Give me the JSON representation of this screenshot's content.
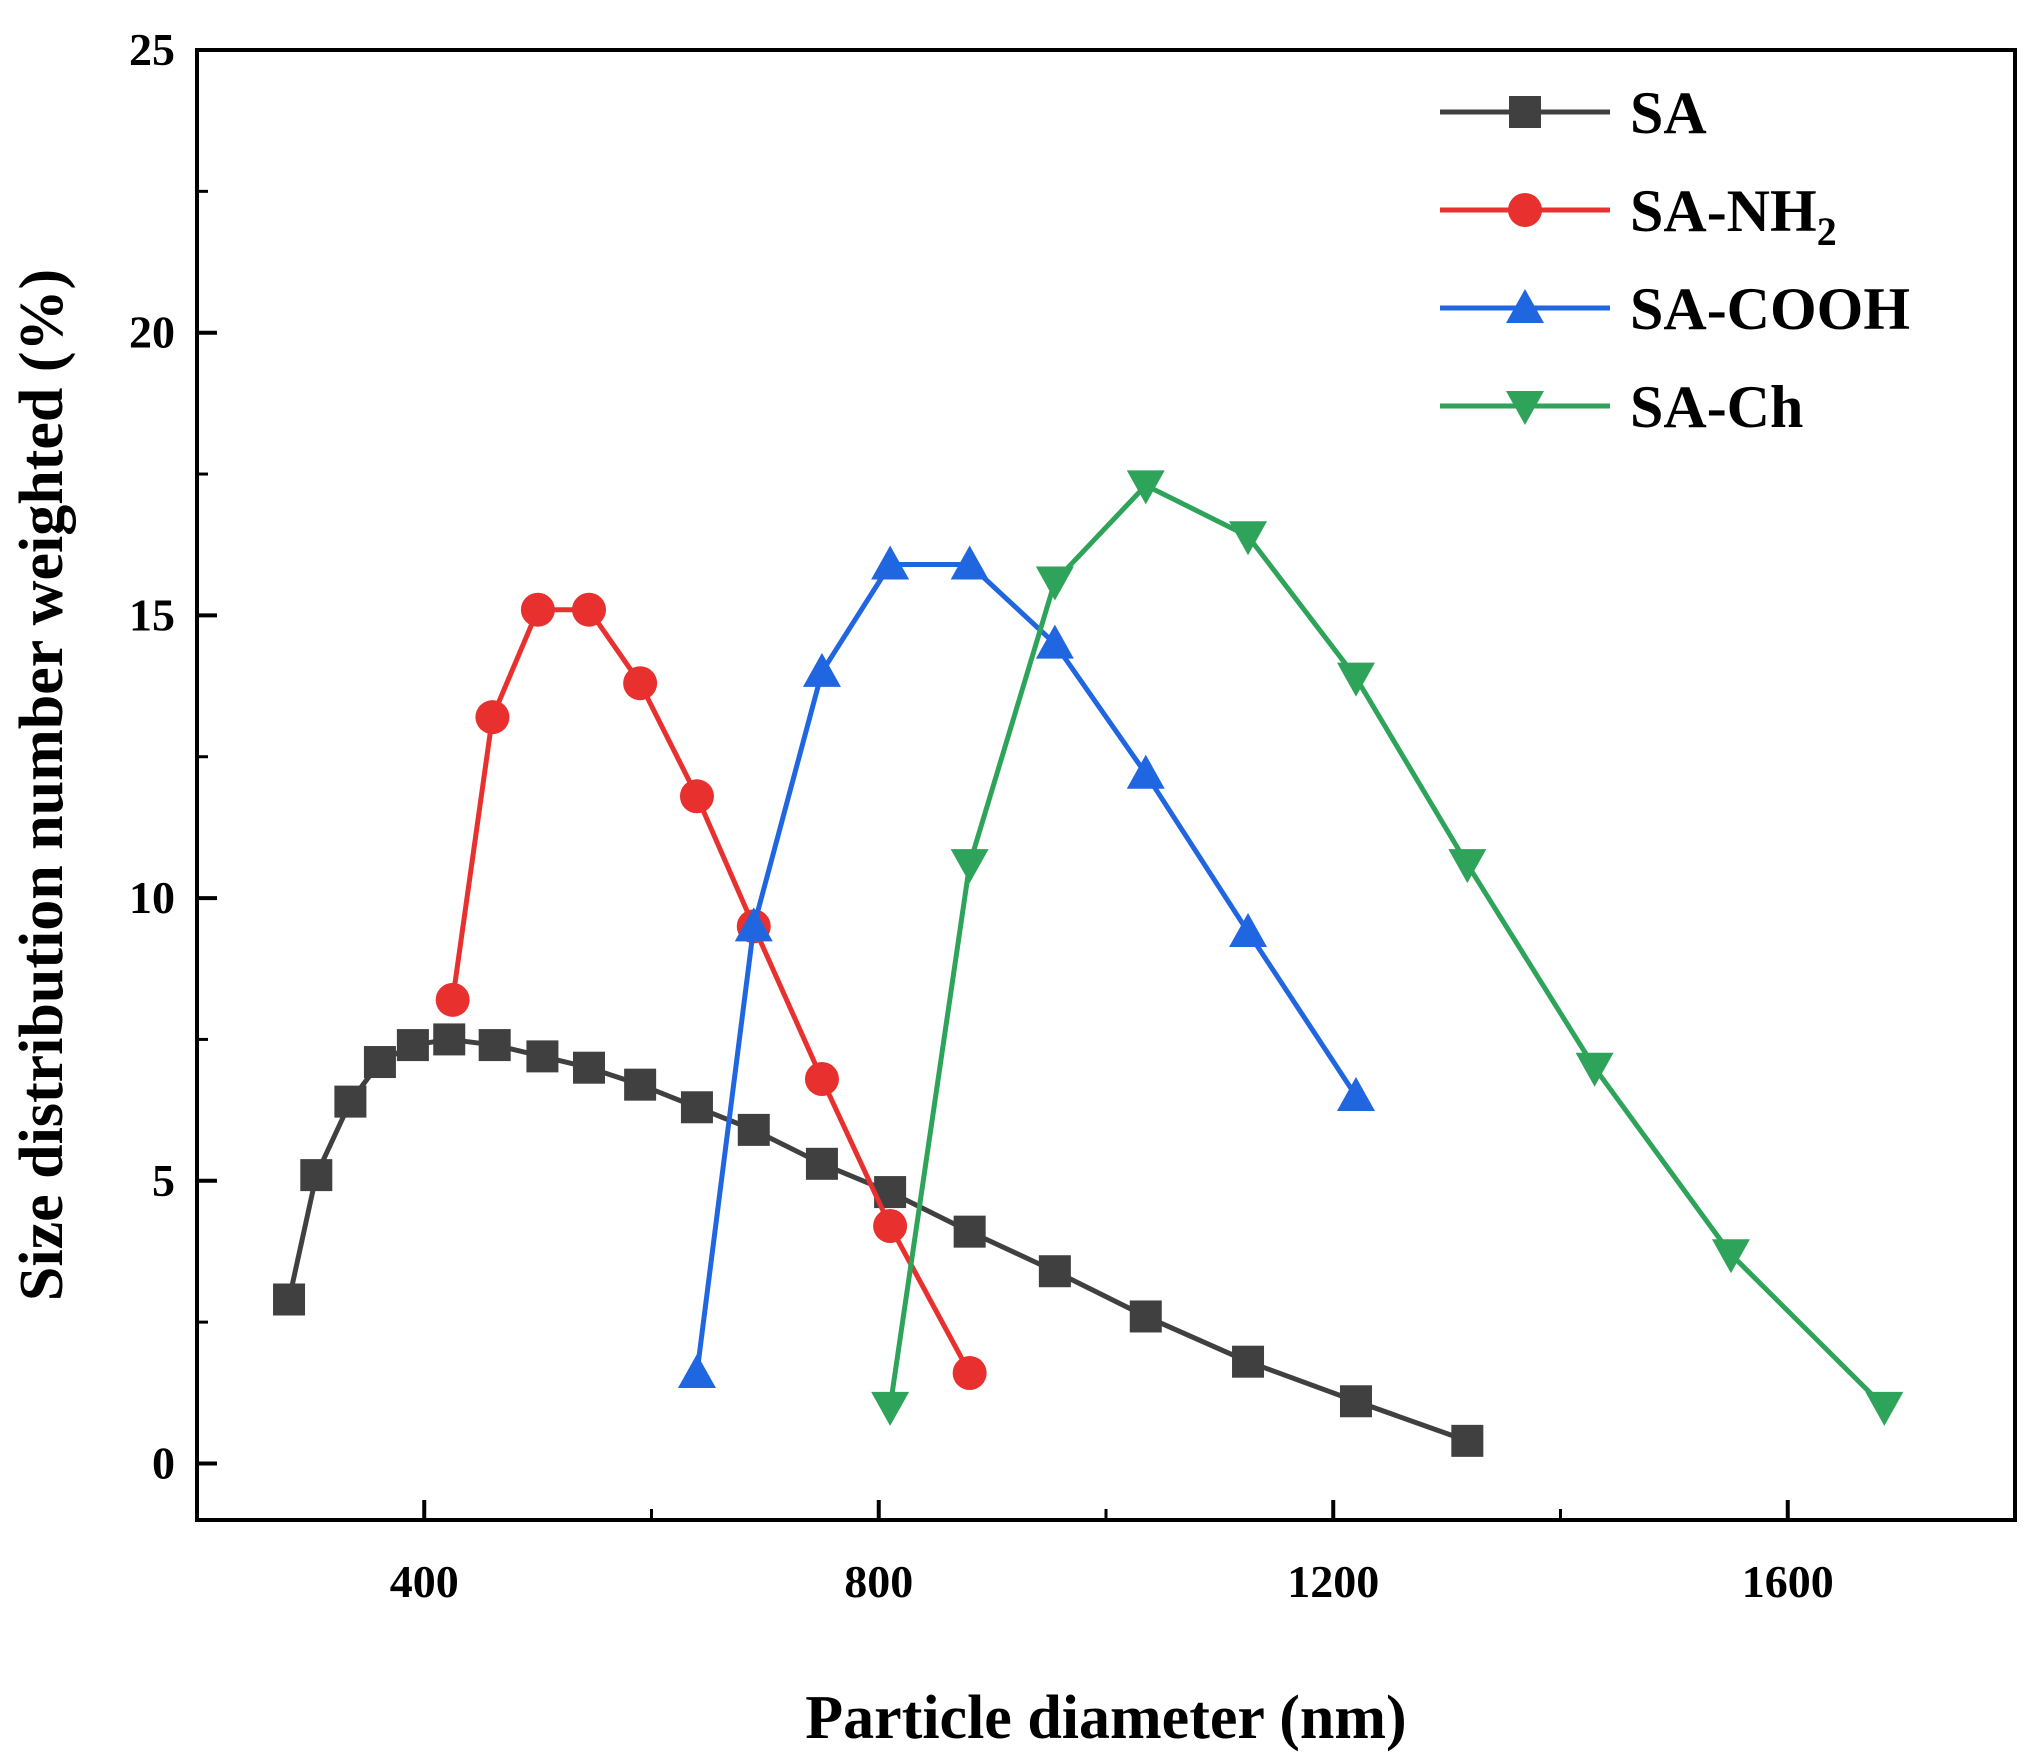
{
  "chart_data": {
    "type": "line",
    "xlabel": "Particle diameter (nm)",
    "ylabel": "Size distribution number weighted (%)",
    "xlim": [
      200,
      1800
    ],
    "ylim": [
      -1,
      25
    ],
    "xticks": [
      400,
      800,
      1200,
      1600
    ],
    "yticks": [
      0,
      5,
      10,
      15,
      20,
      25
    ],
    "grid": false,
    "legend_position": "top-right",
    "series": [
      {
        "name": "SA",
        "legend_main": "SA",
        "legend_sub": "",
        "color": "#404040",
        "marker": "square",
        "x": [
          281,
          305,
          335,
          361,
          390,
          422,
          462,
          504,
          545,
          590,
          640,
          690,
          750,
          810,
          880,
          955,
          1035,
          1125,
          1220,
          1318
        ],
        "y": [
          2.9,
          5.1,
          6.4,
          7.1,
          7.4,
          7.5,
          7.4,
          7.2,
          7.0,
          6.7,
          6.3,
          5.9,
          5.3,
          4.8,
          4.1,
          3.4,
          2.6,
          1.8,
          1.1,
          0.4
        ]
      },
      {
        "name": "SA-NH2",
        "legend_main": "SA-NH",
        "legend_sub": "2",
        "color": "#e8302f",
        "marker": "circle",
        "x": [
          425,
          460,
          500,
          545,
          590,
          640,
          690,
          750,
          810,
          880
        ],
        "y": [
          8.2,
          13.2,
          15.1,
          15.1,
          13.8,
          11.8,
          9.5,
          6.8,
          4.2,
          1.6
        ]
      },
      {
        "name": "SA-COOH",
        "legend_main": "SA-COOH",
        "legend_sub": "",
        "color": "#1f66e0",
        "marker": "triangle-up",
        "x": [
          640,
          690,
          750,
          810,
          880,
          955,
          1035,
          1125,
          1220
        ],
        "y": [
          1.6,
          9.5,
          14.0,
          15.9,
          15.9,
          14.5,
          12.2,
          9.4,
          6.5
        ]
      },
      {
        "name": "SA-Ch",
        "legend_main": "SA-Ch",
        "legend_sub": "",
        "color": "#2ea35a",
        "marker": "triangle-down",
        "x": [
          810,
          880,
          955,
          1035,
          1125,
          1220,
          1318,
          1430,
          1550,
          1685
        ],
        "y": [
          1.0,
          10.6,
          15.6,
          17.3,
          16.4,
          13.9,
          10.6,
          7.0,
          3.7,
          1.0
        ]
      }
    ]
  }
}
